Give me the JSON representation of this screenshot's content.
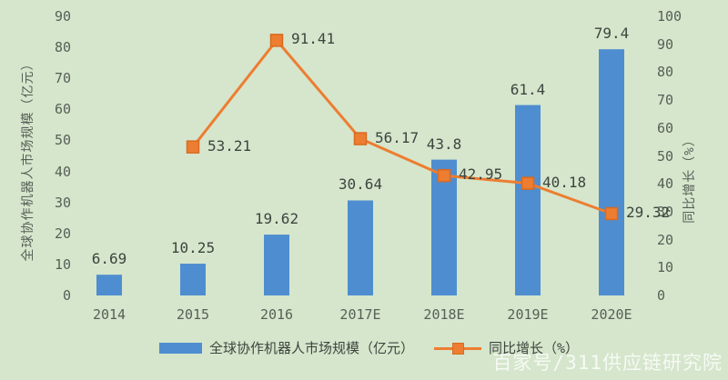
{
  "colors": {
    "background": "#d5e6cc",
    "bar": "#4e8ed0",
    "line": "#ed7d31",
    "marker_border": "#d96a20",
    "tick_text": "#575f57",
    "label_text": "#3d443e",
    "watermark_text": "#ffffff"
  },
  "chart_data": {
    "type": "bar+line",
    "categories": [
      "2014",
      "2015",
      "2016",
      "2017E",
      "2018E",
      "2019E",
      "2020E"
    ],
    "series": [
      {
        "name": "全球协作机器人市场规模（亿元）",
        "type": "bar",
        "axis": "left",
        "color": "#4e8ed0",
        "values": [
          6.69,
          10.25,
          19.62,
          30.64,
          43.8,
          61.4,
          79.4
        ],
        "labels": [
          "6.69",
          "10.25",
          "19.62",
          "30.64",
          "43.8",
          "61.4",
          "79.4"
        ]
      },
      {
        "name": "同比增长（%）",
        "type": "line",
        "axis": "right",
        "color": "#ed7d31",
        "values": [
          null,
          53.21,
          91.41,
          56.17,
          42.95,
          40.18,
          29.32
        ],
        "labels": [
          "",
          "53.21",
          "91.41",
          "56.17",
          "42.95",
          "40.18",
          "29.32"
        ]
      }
    ],
    "left_axis": {
      "label": "全球协作机器人市场规模（亿元）",
      "min": 0,
      "max": 90,
      "step": 10,
      "ticks": [
        "0",
        "10",
        "20",
        "30",
        "40",
        "50",
        "60",
        "70",
        "80",
        "90"
      ]
    },
    "right_axis": {
      "label": "同比增长（%）",
      "min": 0,
      "max": 100,
      "step": 10,
      "ticks": [
        "0",
        "10",
        "20",
        "30",
        "40",
        "50",
        "60",
        "70",
        "80",
        "90",
        "100"
      ]
    },
    "grid": false,
    "legend_position": "bottom"
  },
  "legend": {
    "bar_label": "全球协作机器人市场规模（亿元）",
    "line_label": "同比增长（%）"
  },
  "watermark": "百家号/311供应链研究院"
}
